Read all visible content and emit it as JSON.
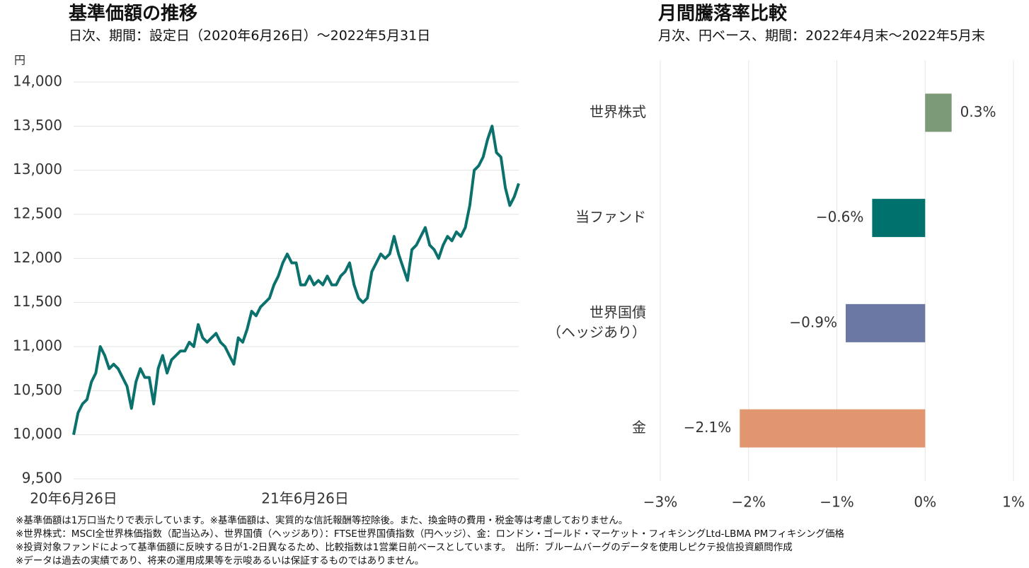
{
  "chart_data": [
    {
      "type": "line",
      "title": "基準価額の推移",
      "subtitle": "日次、期間：設定日（2020年6月26日）～2022年5月31日",
      "y_label": "円",
      "color": "#0b716c",
      "categories": [
        "20年6月26日",
        null,
        null,
        null,
        null,
        null,
        null,
        null,
        null,
        null,
        null,
        null,
        null,
        null,
        null,
        null,
        null,
        null,
        null,
        null,
        null,
        null,
        null,
        null,
        null,
        null,
        null,
        null,
        null,
        null,
        null,
        null,
        null,
        null,
        null,
        null,
        null,
        null,
        null,
        null,
        null,
        null,
        null,
        null,
        null,
        null,
        null,
        null,
        null,
        null,
        null,
        null,
        "21年6月26日",
        null,
        null,
        null,
        null,
        null,
        null,
        null,
        null,
        null,
        null,
        null,
        null,
        null,
        null,
        null,
        null,
        null,
        null,
        null,
        null,
        null,
        null,
        null,
        null,
        null,
        null,
        null,
        null,
        null,
        null,
        null,
        null,
        null,
        null,
        null,
        null,
        null,
        null,
        null,
        null,
        null,
        null,
        null,
        null,
        null,
        null,
        null,
        null
      ],
      "values": [
        10000,
        10250,
        10350,
        10400,
        10600,
        10700,
        11000,
        10900,
        10750,
        10800,
        10750,
        10650,
        10550,
        10300,
        10600,
        10750,
        10650,
        10650,
        10350,
        10750,
        10900,
        10700,
        10850,
        10900,
        10950,
        10950,
        11050,
        11000,
        11250,
        11100,
        11050,
        11100,
        11150,
        11050,
        11000,
        10900,
        10800,
        11100,
        11050,
        11200,
        11400,
        11350,
        11450,
        11500,
        11550,
        11700,
        11800,
        11950,
        12050,
        11950,
        11950,
        11700,
        11700,
        11800,
        11700,
        11750,
        11700,
        11800,
        11700,
        11700,
        11800,
        11850,
        11950,
        11700,
        11550,
        11500,
        11550,
        11850,
        11950,
        12050,
        12000,
        12050,
        12250,
        12050,
        11900,
        11750,
        12100,
        12150,
        12250,
        12350,
        12150,
        12100,
        12000,
        12150,
        12250,
        12200,
        12300,
        12250,
        12350,
        12600,
        13000,
        13050,
        13150,
        13350,
        13500,
        13200,
        13150,
        12800,
        12600,
        12700,
        12850
      ],
      "ylim": [
        9500,
        14000
      ],
      "yticks": [
        {
          "value": 9500,
          "label": "9,500"
        },
        {
          "value": 10000,
          "label": "10,000"
        },
        {
          "value": 10500,
          "label": "10,500"
        },
        {
          "value": 11000,
          "label": "11,000"
        },
        {
          "value": 11500,
          "label": "11,500"
        },
        {
          "value": 12000,
          "label": "12,000"
        },
        {
          "value": 12500,
          "label": "12,500"
        },
        {
          "value": 13000,
          "label": "13,000"
        },
        {
          "value": 13500,
          "label": "13,500"
        },
        {
          "value": 14000,
          "label": "14,000"
        }
      ],
      "grid": true
    },
    {
      "type": "hbar",
      "title": "月間騰落率比較",
      "subtitle": "月次、円ベース、期間：2022年4月末～2022年5月末",
      "categories": [
        "世界株式",
        "当ファンド",
        [
          "世界国債",
          "（ヘッジあり）"
        ],
        "金"
      ],
      "values": [
        0.3,
        -0.6,
        -0.9,
        -2.1
      ],
      "value_labels": [
        "0.3%",
        "−0.6%",
        "−0.9%",
        "−2.1%"
      ],
      "colors": [
        "#7d9a78",
        "#00716d",
        "#6b78a4",
        "#e2966f"
      ],
      "xlim": [
        -3,
        1
      ],
      "xticks": [
        {
          "value": -3,
          "label": "−3%"
        },
        {
          "value": -2,
          "label": "−2%"
        },
        {
          "value": -1,
          "label": "−1%"
        },
        {
          "value": 0,
          "label": "0%"
        },
        {
          "value": 1,
          "label": "1%"
        }
      ],
      "grid": true
    }
  ],
  "footnotes": [
    "※基準価額は1万口当たりで表示しています。※基準価額は、実質的な信託報酬等控除後。また、換金時の費用・税金等は考慮しておりません。",
    "※世界株式：MSCI全世界株価指数（配当込み）、世界国債（ヘッジあり）：FTSE世界国債指数（円ヘッジ）、金：ロンドン・ゴールド・マーケット・フィキシングLtd-LBMA PMフィキシング価格",
    "※投資対象ファンドによって基準価額に反映する日が1-2日異なるため、比較指数は1営業日前ベースとしています。　出所：ブルームバーグのデータを使用しピクテ投信投資顧問作成",
    "※データは過去の実績であり、将来の運用成果等を示唆あるいは保証するものではありません。"
  ]
}
